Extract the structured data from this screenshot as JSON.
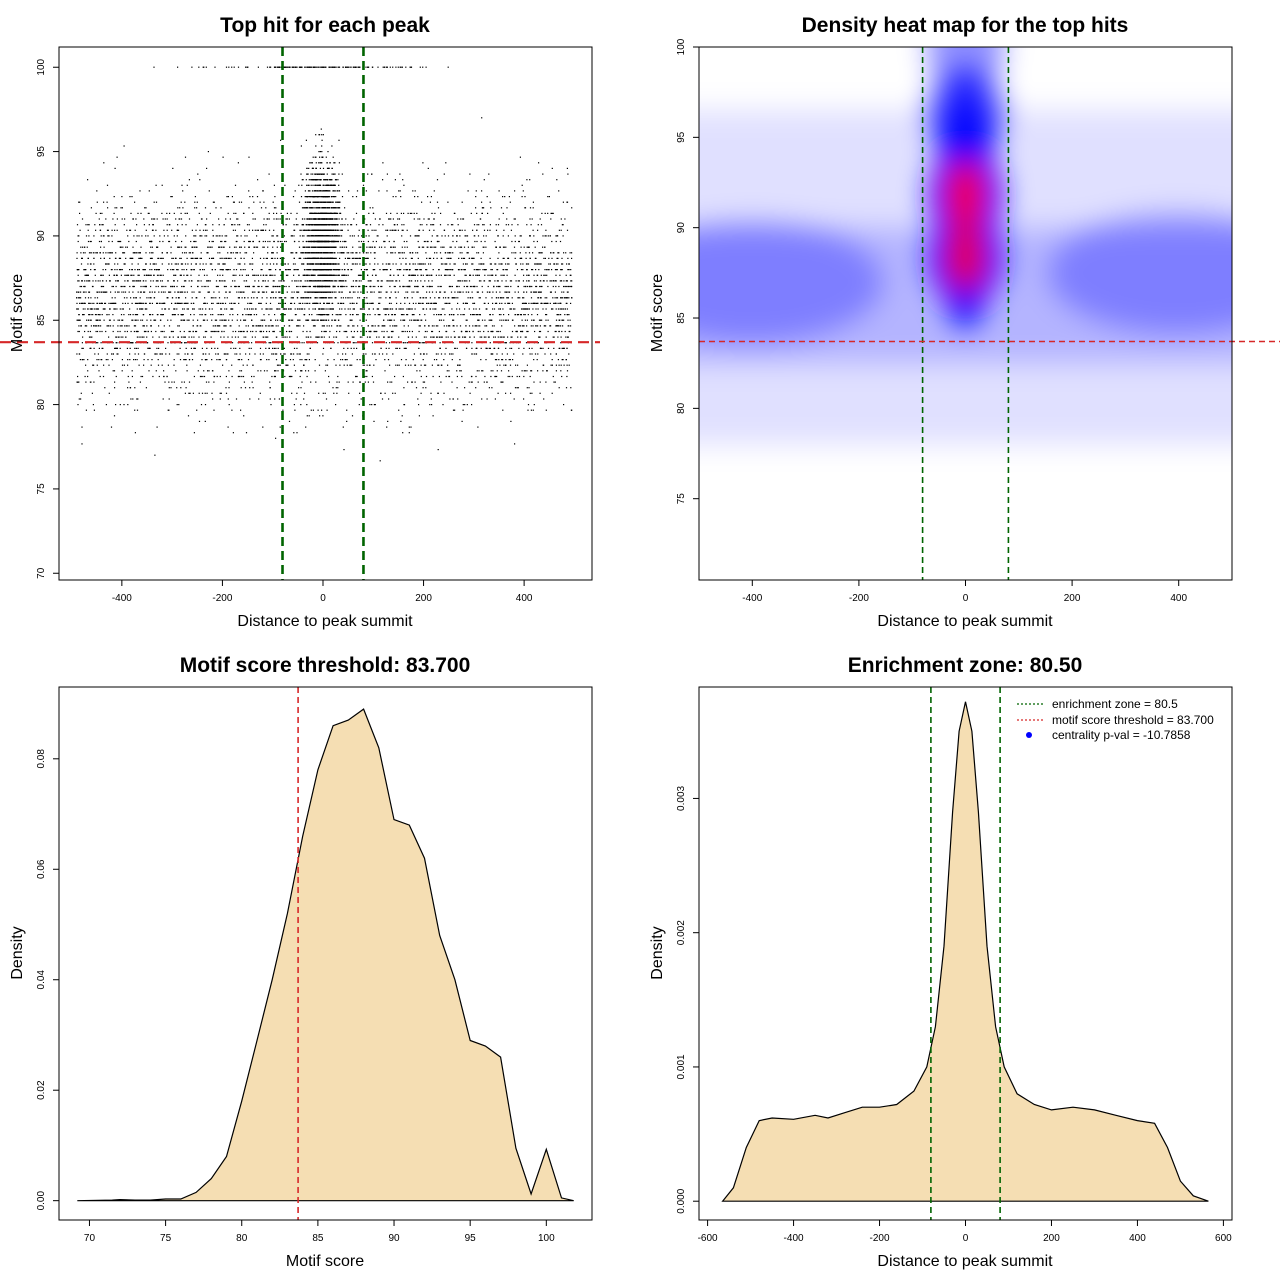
{
  "colors": {
    "threshold": "#d62728",
    "zone": "#006400",
    "fill": "#f5deb3",
    "heat_low": "#ffffff",
    "heat_mid": "#0000ff",
    "heat_high": "#ff0000",
    "pval": "#0000ff"
  },
  "chart_data": [
    {
      "type": "scatter",
      "title": "Top hit for each peak",
      "xlabel": "Distance to peak summit",
      "ylabel": "Motif score",
      "xlim": [
        -525,
        535
      ],
      "ylim": [
        69.6,
        101.2
      ],
      "xticks": [
        -400,
        -200,
        0,
        200,
        400
      ],
      "yticks": [
        70,
        75,
        80,
        85,
        90,
        95,
        100
      ],
      "threshold": 83.7,
      "zone": [
        -80.5,
        80.5
      ],
      "point_distribution": {
        "x_range": [
          -490,
          495
        ],
        "central_band": [
          -60,
          60
        ],
        "main_score_range": [
          79,
          97
        ],
        "discrete_top_score": 100
      }
    },
    {
      "type": "heatmap",
      "title": "Density heat map for the top hits",
      "xlabel": "Distance to peak summit",
      "ylabel": "Motif score",
      "xlim": [
        -500,
        500
      ],
      "ylim": [
        70.5,
        100
      ],
      "xticks": [
        -400,
        -200,
        0,
        200,
        400
      ],
      "yticks": [
        75,
        80,
        85,
        90,
        95,
        100
      ],
      "threshold": 83.7,
      "zone": [
        -80.5,
        80.5
      ],
      "hotspots": [
        {
          "x": 0,
          "y": 91.8,
          "level": 1.0
        },
        {
          "x": 0,
          "y": 88.3,
          "level": 0.95
        },
        {
          "x": 0,
          "y": 96.3,
          "level": 0.55
        },
        {
          "x": 0,
          "y": 100,
          "level": 0.15
        },
        {
          "x": -400,
          "y": 87,
          "level": 0.3
        },
        {
          "x": 400,
          "y": 87.5,
          "level": 0.3
        }
      ]
    },
    {
      "type": "area",
      "title": "Motif score threshold: 83.700",
      "xlabel": "Motif score",
      "ylabel": "Density",
      "xlim": [
        68,
        103
      ],
      "ylim": [
        -0.0035,
        0.093
      ],
      "xticks": [
        70,
        75,
        80,
        85,
        90,
        95,
        100
      ],
      "yticks": [
        0,
        0.02,
        0.04,
        0.06,
        0.08
      ],
      "ytick_labels": [
        "0.00",
        "0.02",
        "0.04",
        "0.06",
        "0.08"
      ],
      "threshold": 83.7,
      "x": [
        69.2,
        71.5,
        72,
        73,
        74,
        75,
        76,
        77,
        78,
        79,
        80,
        81,
        82,
        83,
        84,
        85,
        86,
        87,
        88,
        89,
        90,
        91,
        92,
        93,
        94,
        95,
        96,
        97,
        98,
        99,
        100,
        101,
        101.8
      ],
      "y": [
        0,
        0.0001,
        0.0002,
        0.0001,
        0.0001,
        0.0003,
        0.0003,
        0.0015,
        0.004,
        0.008,
        0.018,
        0.029,
        0.04,
        0.052,
        0.066,
        0.078,
        0.086,
        0.087,
        0.089,
        0.082,
        0.069,
        0.068,
        0.062,
        0.048,
        0.04,
        0.029,
        0.028,
        0.026,
        0.0095,
        0.0012,
        0.0093,
        0.0005,
        0
      ]
    },
    {
      "type": "area",
      "title": "Enrichment zone: 80.50",
      "xlabel": "Distance to peak summit",
      "ylabel": "Density",
      "xlim": [
        -620,
        620
      ],
      "ylim": [
        -0.00014,
        0.00383
      ],
      "xticks": [
        -600,
        -400,
        -200,
        0,
        200,
        400,
        600
      ],
      "yticks": [
        0,
        0.001,
        0.002,
        0.003
      ],
      "ytick_labels": [
        "0.000",
        "0.001",
        "0.002",
        "0.003"
      ],
      "zone": [
        -80.5,
        80.5
      ],
      "x": [
        -565,
        -540,
        -510,
        -480,
        -450,
        -400,
        -350,
        -320,
        -280,
        -240,
        -200,
        -160,
        -120,
        -90,
        -70,
        -50,
        -30,
        -15,
        0,
        15,
        30,
        50,
        70,
        90,
        120,
        160,
        200,
        250,
        300,
        350,
        400,
        440,
        470,
        500,
        530,
        565
      ],
      "y": [
        0,
        0.0001,
        0.0004,
        0.0006,
        0.00062,
        0.00061,
        0.00064,
        0.00062,
        0.00066,
        0.0007,
        0.0007,
        0.00072,
        0.00082,
        0.001,
        0.0013,
        0.0019,
        0.0029,
        0.0035,
        0.00372,
        0.0035,
        0.0029,
        0.0019,
        0.0013,
        0.001,
        0.0008,
        0.00072,
        0.00068,
        0.0007,
        0.00068,
        0.00064,
        0.0006,
        0.00058,
        0.0004,
        0.00015,
        4e-05,
        0
      ],
      "legend": {
        "placement": "top-right",
        "entries": [
          {
            "label": "enrichment zone = 80.5",
            "symbol": "dotted-line",
            "color": "#006400"
          },
          {
            "label": "motif score threshold = 83.700",
            "symbol": "dotted-line",
            "color": "#d62728"
          },
          {
            "label": "centrality p-val = -10.7858",
            "symbol": "point",
            "color": "#0000ff"
          }
        ]
      }
    }
  ]
}
